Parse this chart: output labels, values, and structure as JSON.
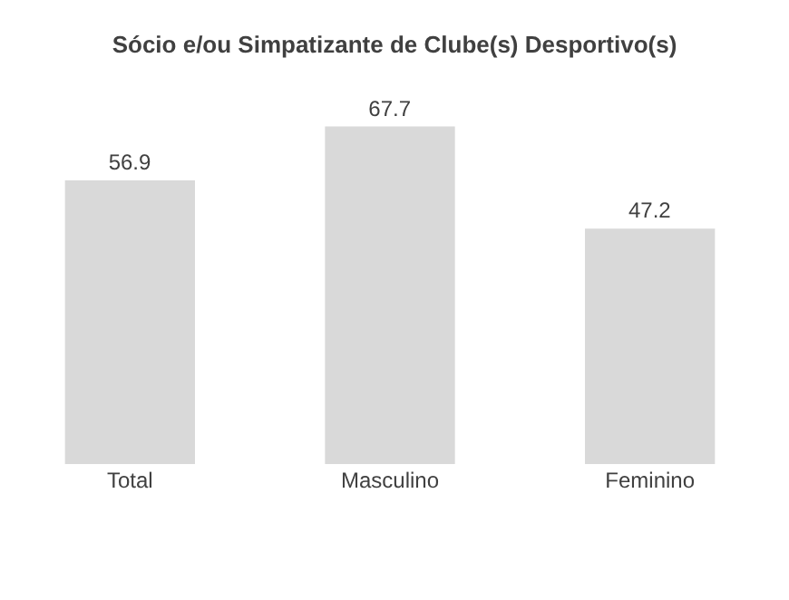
{
  "chart_data": {
    "type": "bar",
    "title": "Sócio e/ou Simpatizante de Clube(s) Desportivo(s)",
    "categories": [
      "Total",
      "Masculino",
      "Feminino"
    ],
    "values": [
      56.9,
      67.7,
      47.2
    ],
    "color": "#d9d9d9",
    "data_labels": true
  }
}
